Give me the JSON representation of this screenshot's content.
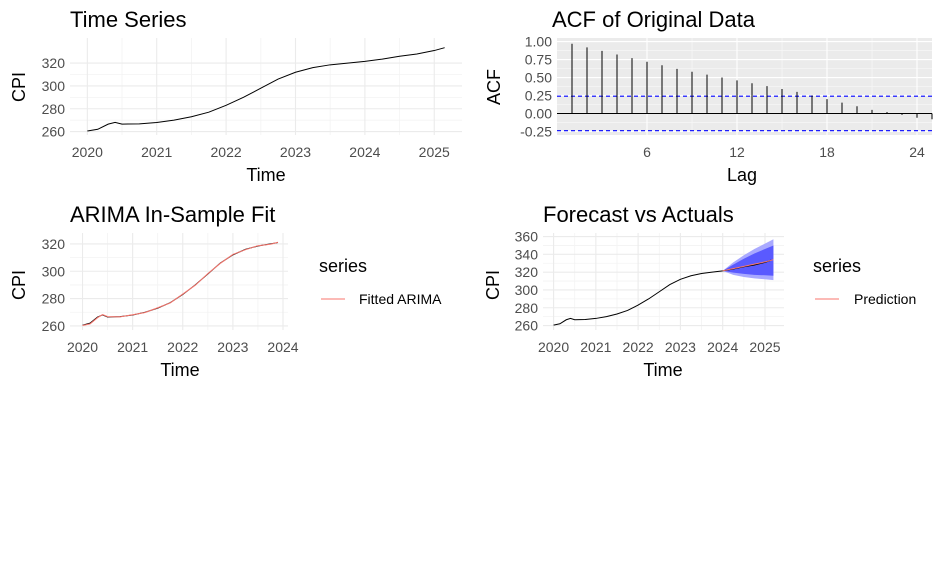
{
  "chart_data": [
    {
      "id": "p1",
      "type": "line",
      "title": "Time Series",
      "xlabel": "Time",
      "ylabel": "CPI",
      "xlim": [
        2019.75,
        2025.4
      ],
      "ylim": [
        257,
        342
      ],
      "xticks": [
        2020,
        2021,
        2022,
        2023,
        2024,
        2025
      ],
      "xtick_labels": [
        "2020",
        "2021",
        "2022",
        "2023",
        "2024",
        "2025"
      ],
      "yticks": [
        260,
        280,
        300,
        320
      ],
      "ytick_labels": [
        "260",
        "280",
        "300",
        "320"
      ],
      "series": [
        {
          "color": "#000000",
          "x": [
            2020.0,
            2020.15,
            2020.3,
            2020.4,
            2020.5,
            2020.75,
            2021.0,
            2021.25,
            2021.5,
            2021.75,
            2022.0,
            2022.25,
            2022.5,
            2022.75,
            2023.0,
            2023.25,
            2023.5,
            2023.75,
            2024.0,
            2024.25,
            2024.5,
            2024.75,
            2025.0,
            2025.15
          ],
          "y": [
            260.5,
            262,
            266.5,
            268,
            266.5,
            266.8,
            268,
            270,
            273,
            277,
            283,
            290,
            298,
            306,
            312,
            316,
            318.5,
            320,
            321.5,
            323.5,
            326,
            328,
            331,
            333.5
          ]
        }
      ]
    },
    {
      "id": "p2",
      "type": "bar",
      "title": "ACF of Original Data",
      "xlabel": "Lag",
      "ylabel": "ACF",
      "xlim": [
        0,
        25
      ],
      "ylim": [
        -0.3,
        1.05
      ],
      "xticks": [
        6,
        12,
        18,
        24
      ],
      "xtick_labels": [
        "6",
        "12",
        "18",
        "24"
      ],
      "yticks": [
        -0.25,
        0,
        0.25,
        0.5,
        0.75,
        1.0
      ],
      "ytick_labels": [
        "-0.25",
        "0.00",
        "0.25",
        "0.50",
        "0.75",
        "1.00"
      ],
      "lags": [
        1,
        2,
        3,
        4,
        5,
        6,
        7,
        8,
        9,
        10,
        11,
        12,
        13,
        14,
        15,
        16,
        17,
        18,
        19,
        20,
        21,
        22,
        23,
        24,
        25
      ],
      "acf": [
        0.97,
        0.92,
        0.87,
        0.82,
        0.77,
        0.72,
        0.67,
        0.62,
        0.58,
        0.54,
        0.5,
        0.46,
        0.42,
        0.38,
        0.34,
        0.3,
        0.25,
        0.2,
        0.15,
        0.1,
        0.05,
        0.02,
        -0.02,
        -0.06,
        -0.08
      ],
      "conf_bound": 0.24,
      "bar_color": "#000000",
      "conf_color": "#0000ff"
    },
    {
      "id": "p3",
      "type": "line",
      "title": "ARIMA In-Sample Fit",
      "xlabel": "Time",
      "ylabel": "CPI",
      "xlim": [
        2019.75,
        2024.1
      ],
      "ylim": [
        257,
        328
      ],
      "xticks": [
        2020,
        2021,
        2022,
        2023,
        2024
      ],
      "xtick_labels": [
        "2020",
        "2021",
        "2022",
        "2023",
        "2024"
      ],
      "yticks": [
        260,
        280,
        300,
        320
      ],
      "ytick_labels": [
        "260",
        "280",
        "300",
        "320"
      ],
      "series": [
        {
          "color": "#000000",
          "x": [
            2020.0,
            2020.15,
            2020.3,
            2020.4,
            2020.5,
            2020.75,
            2021.0,
            2021.25,
            2021.5,
            2021.75,
            2022.0,
            2022.25,
            2022.5,
            2022.75,
            2023.0,
            2023.25,
            2023.5,
            2023.75,
            2023.9
          ],
          "y": [
            260.5,
            262,
            266.5,
            268,
            266.5,
            266.8,
            268,
            270,
            273,
            277,
            283,
            290,
            298,
            306,
            312,
            316,
            318.5,
            320,
            321
          ]
        },
        {
          "name": "Fitted ARIMA",
          "color": "#f8766d",
          "x": [
            2020.0,
            2020.15,
            2020.3,
            2020.4,
            2020.5,
            2020.75,
            2021.0,
            2021.25,
            2021.5,
            2021.75,
            2022.0,
            2022.25,
            2022.5,
            2022.75,
            2023.0,
            2023.25,
            2023.5,
            2023.75,
            2023.9
          ],
          "y": [
            260.3,
            261.5,
            266,
            268.3,
            266.8,
            266.6,
            268.2,
            269.8,
            273.3,
            276.8,
            283.3,
            289.8,
            298.3,
            305.8,
            312.3,
            315.8,
            318.7,
            319.8,
            321.2
          ]
        }
      ],
      "legend": {
        "title": "series",
        "placement": "right",
        "entries": [
          {
            "label": "Fitted ARIMA",
            "color": "#f8766d"
          }
        ]
      }
    },
    {
      "id": "p4",
      "type": "line",
      "title": "Forecast vs Actuals",
      "xlabel": "Time",
      "ylabel": "CPI",
      "xlim": [
        2019.75,
        2025.45
      ],
      "ylim": [
        255,
        364
      ],
      "xticks": [
        2020,
        2021,
        2022,
        2023,
        2024,
        2025
      ],
      "xtick_labels": [
        "2020",
        "2021",
        "2022",
        "2023",
        "2024",
        "2025"
      ],
      "yticks": [
        260,
        280,
        300,
        320,
        340,
        360
      ],
      "ytick_labels": [
        "260",
        "280",
        "300",
        "320",
        "340",
        "360"
      ],
      "series": [
        {
          "color": "#000000",
          "x": [
            2020.0,
            2020.15,
            2020.3,
            2020.4,
            2020.5,
            2020.75,
            2021.0,
            2021.25,
            2021.5,
            2021.75,
            2022.0,
            2022.25,
            2022.5,
            2022.75,
            2023.0,
            2023.25,
            2023.5,
            2023.75,
            2024.0,
            2024.25,
            2024.5,
            2024.75,
            2025.0,
            2025.15
          ],
          "y": [
            260.5,
            262,
            266.5,
            268,
            266.5,
            266.8,
            268,
            270,
            273,
            277,
            283,
            290,
            298,
            306,
            312,
            316,
            318.5,
            320,
            321.5,
            323.5,
            326,
            328,
            331,
            333.5
          ]
        },
        {
          "name": "Prediction",
          "color": "#f8766d",
          "x": [
            2024.0,
            2024.25,
            2024.5,
            2024.75,
            2025.0,
            2025.2
          ],
          "y": [
            321.5,
            324,
            326.5,
            329,
            331.5,
            334
          ]
        }
      ],
      "forecast_band": {
        "x": [
          2024.0,
          2024.25,
          2024.5,
          2024.75,
          2025.0,
          2025.2
        ],
        "lo80": [
          321.5,
          319.5,
          318,
          317,
          316.5,
          316
        ],
        "hi80": [
          321.5,
          328.5,
          335,
          341,
          346,
          350
        ],
        "lo95": [
          321.5,
          317,
          314.5,
          313,
          312,
          311
        ],
        "hi95": [
          321.5,
          331,
          339,
          346,
          352,
          357
        ],
        "color80": "#5a5aff",
        "color95": "#a9a9ff"
      },
      "legend": {
        "title": "series",
        "placement": "right",
        "entries": [
          {
            "label": "Prediction",
            "color": "#f8766d"
          }
        ]
      }
    }
  ]
}
